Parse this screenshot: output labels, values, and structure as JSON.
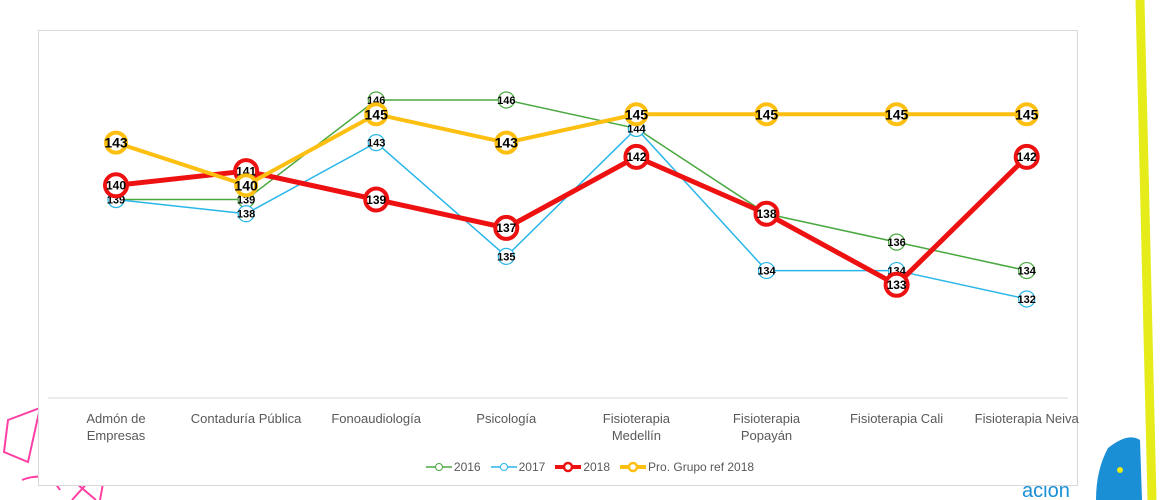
{
  "chart_data": {
    "type": "line",
    "categories": [
      [
        "Admón de",
        "Empresas"
      ],
      [
        "Contaduría Pública"
      ],
      [
        "Fonoaudiología"
      ],
      [
        "Psicología"
      ],
      [
        "Fisioterapia",
        "Medellín"
      ],
      [
        "Fisioterapia",
        "Popayán"
      ],
      [
        "Fisioterapia Cali"
      ],
      [
        "Fisioterapia Neiva"
      ]
    ],
    "ylim": [
      125,
      152
    ],
    "grid": false,
    "legend_position": "bottom",
    "series": [
      {
        "name": "2016",
        "values": [
          139,
          139,
          146,
          146,
          144,
          138,
          136,
          134
        ],
        "color": "#4aa840",
        "width": 1.5,
        "marker_r": 8,
        "bold": false,
        "label_size": 11
      },
      {
        "name": "2017",
        "values": [
          139,
          138,
          143,
          135,
          144,
          134,
          134,
          132
        ],
        "color": "#29b6e8",
        "width": 1.5,
        "marker_r": 8,
        "bold": false,
        "label_size": 11
      },
      {
        "name": "2018",
        "values": [
          140,
          141,
          139,
          137,
          142,
          138,
          133,
          142
        ],
        "color": "#ee1111",
        "width": 5,
        "marker_r": 11,
        "bold": true,
        "label_size": 12
      },
      {
        "name": "Pro. Grupo ref 2018",
        "values": [
          143,
          140,
          145,
          143,
          145,
          145,
          145,
          145
        ],
        "color": "#fdbf11",
        "width": 4,
        "marker_r": 10,
        "bold": true,
        "label_size": 14
      }
    ]
  },
  "colors": {
    "deco_pink": "#ff3fa4",
    "deco_yellow": "#e6ec1a",
    "deco_blue": "#1b8fd6"
  },
  "logo_text": "ación"
}
